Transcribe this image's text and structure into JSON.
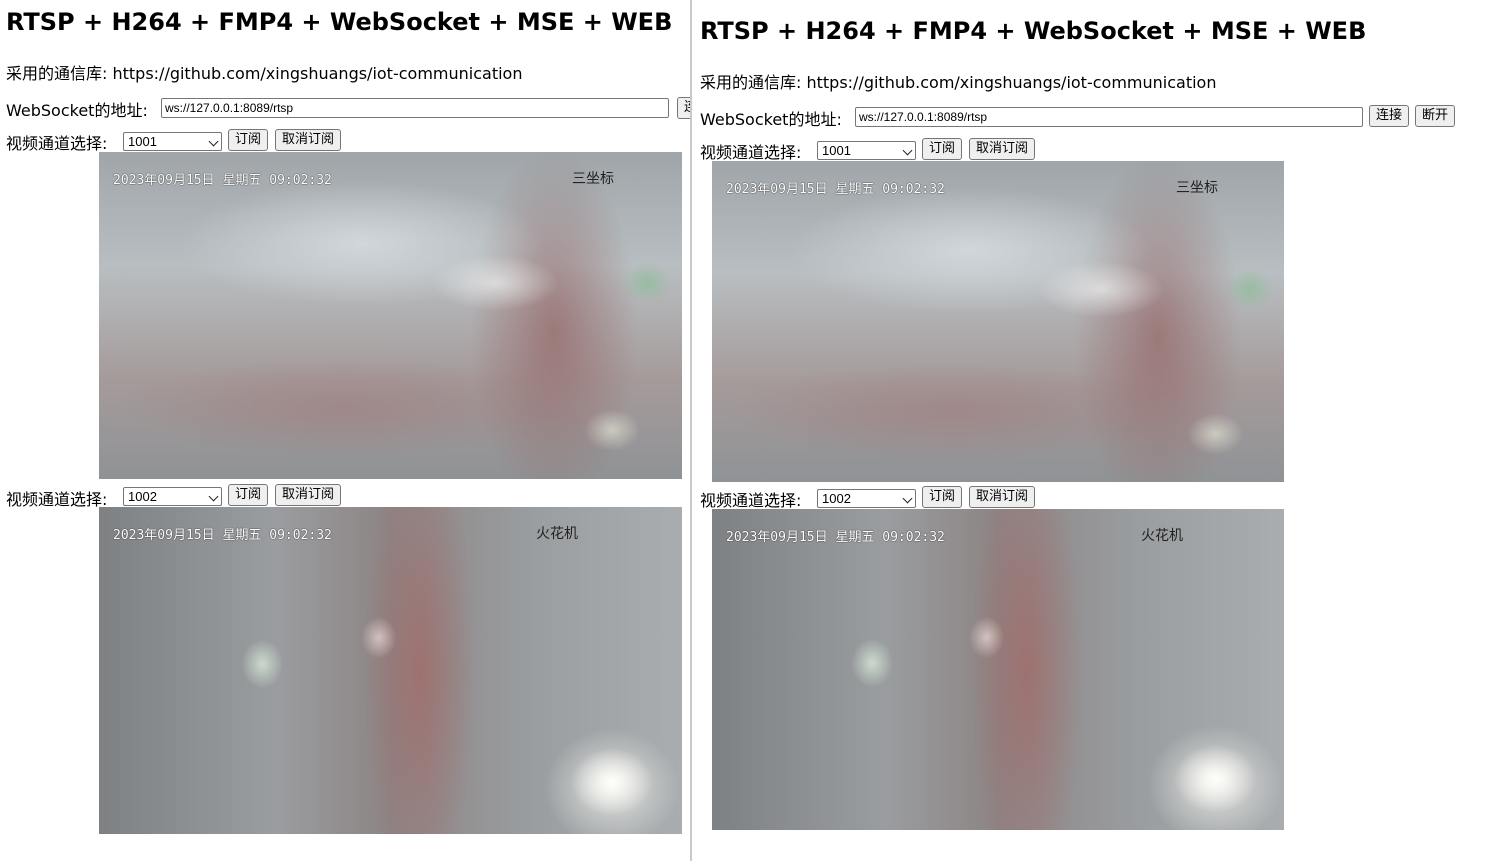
{
  "page": {
    "title": "RTSP + H264 + FMP4 + WebSocket + MSE + WEB",
    "library_text": "采用的通信库: https://github.com/xingshuangs/iot-communication",
    "ws_label": "WebSocket的地址:",
    "ws_value": "ws://127.0.0.1:8089/rtsp",
    "connect_label": "连接",
    "disconnect_label": "断开",
    "channel_label": "视频通道选择:",
    "subscribe_label": "订阅",
    "unsubscribe_label": "取消订阅"
  },
  "channels": [
    {
      "selected": "1001",
      "osd_text": "2023年09月15日  星期五  09:02:32",
      "camera_name": "三坐标"
    },
    {
      "selected": "1002",
      "osd_text": "2023年09月15日  星期五  09:02:32",
      "camera_name": "火花机"
    }
  ],
  "colors": {
    "button_bg": "#efefef",
    "border": "#767676",
    "divider": "#c9c9c9"
  }
}
